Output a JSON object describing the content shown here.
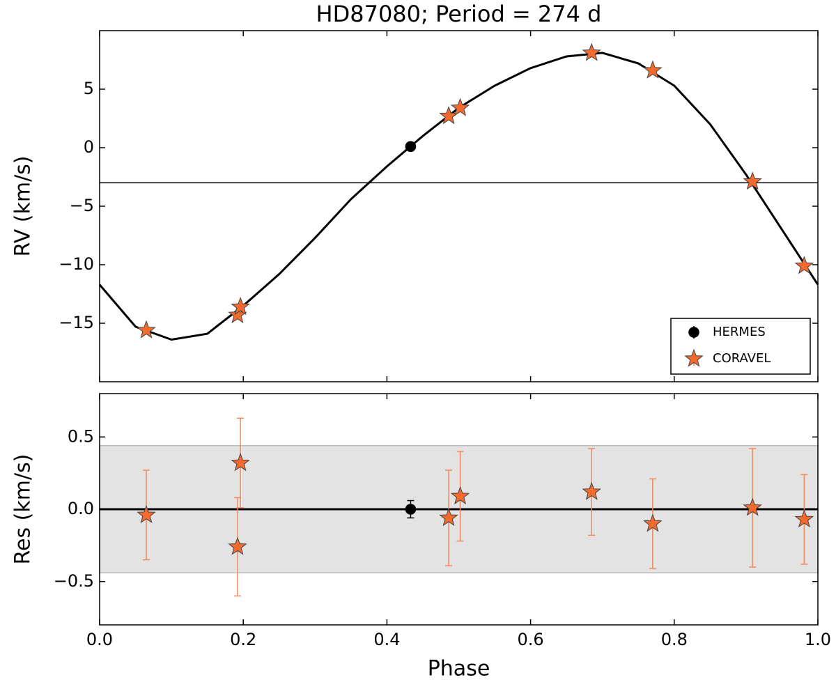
{
  "chart_data": [
    {
      "type": "scatter",
      "title": "HD87080; Period = 274 d",
      "ylabel": "RV (km/s)",
      "xlim": [
        0,
        1
      ],
      "ylim": [
        -20,
        10
      ],
      "yticks": [
        -15,
        -10,
        -5,
        0,
        5
      ],
      "hline": -3.0,
      "model": {
        "x": [
          0,
          0.05,
          0.1,
          0.15,
          0.2,
          0.25,
          0.3,
          0.35,
          0.4,
          0.45,
          0.5,
          0.55,
          0.6,
          0.65,
          0.7,
          0.75,
          0.8,
          0.85,
          0.9,
          0.95,
          1.0
        ],
        "y": [
          -11.7,
          -15.3,
          -16.4,
          -15.9,
          -13.5,
          -10.8,
          -7.7,
          -4.4,
          -1.6,
          1.0,
          3.4,
          5.3,
          6.8,
          7.8,
          8.1,
          7.2,
          5.3,
          2.0,
          -2.3,
          -7.0,
          -11.7
        ]
      },
      "legend": "lower right",
      "series": [
        {
          "name": "HERMES",
          "color": "#000000",
          "marker": "circle",
          "x": [
            0.433
          ],
          "y": [
            0.1
          ]
        },
        {
          "name": "CORAVEL",
          "color": "#f26a2e",
          "marker": "star",
          "x": [
            0.065,
            0.192,
            0.196,
            0.486,
            0.502,
            0.685,
            0.77,
            0.909,
            0.981
          ],
          "y": [
            -15.6,
            -14.3,
            -13.6,
            2.7,
            3.4,
            8.1,
            6.6,
            -2.9,
            -10.1
          ]
        }
      ]
    },
    {
      "type": "scatter",
      "ylabel": "Res (km/s)",
      "xlabel": "Phase",
      "xlim": [
        0,
        1
      ],
      "ylim": [
        -0.8,
        0.8
      ],
      "xticks": [
        {
          "value": 0,
          "label": "0.0"
        },
        0.2,
        0.4,
        0.6,
        0.8,
        {
          "value": 1,
          "label": "1.0"
        }
      ],
      "yticks": [
        -0.5,
        {
          "value": 0,
          "label": "0.0"
        },
        0.5
      ],
      "band": [
        -0.44,
        0.44
      ],
      "hline": 0,
      "series": [
        {
          "name": "HERMES",
          "color": "#000000",
          "marker": "circle",
          "x": [
            0.433
          ],
          "y": [
            0.0
          ],
          "yerr": [
            0.06
          ]
        },
        {
          "name": "CORAVEL",
          "color": "#f26a2e",
          "marker": "star",
          "x": [
            0.065,
            0.192,
            0.196,
            0.486,
            0.502,
            0.685,
            0.77,
            0.909,
            0.981
          ],
          "y": [
            -0.04,
            -0.26,
            0.32,
            -0.06,
            0.09,
            0.12,
            -0.1,
            0.01,
            -0.07
          ],
          "yerr": [
            0.31,
            0.34,
            0.31,
            0.33,
            0.31,
            0.3,
            0.31,
            0.41,
            0.31
          ]
        }
      ]
    }
  ]
}
